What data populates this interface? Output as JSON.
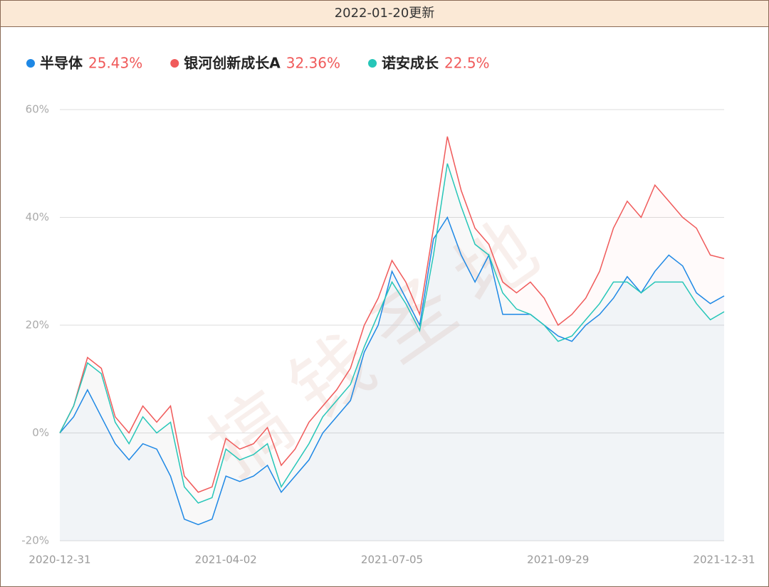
{
  "header": "2022-01-20更新",
  "watermark": "搞钱圣地",
  "chart_data": {
    "type": "line",
    "categories": [
      "2020-12-31",
      null,
      null,
      null,
      null,
      null,
      null,
      null,
      null,
      null,
      null,
      null,
      "2021-04-02",
      null,
      null,
      null,
      null,
      null,
      null,
      null,
      null,
      null,
      null,
      null,
      "2021-07-05",
      null,
      null,
      null,
      null,
      null,
      null,
      null,
      null,
      null,
      null,
      null,
      "2021-09-29",
      null,
      null,
      null,
      null,
      null,
      null,
      null,
      null,
      null,
      null,
      null,
      "2021-12-31"
    ],
    "ylim": [
      -20,
      60
    ],
    "yticks": [
      {
        "value": -20,
        "label": "-20%"
      },
      {
        "value": 0,
        "label": "0%"
      },
      {
        "value": 20,
        "label": "20%"
      },
      {
        "value": 40,
        "label": "40%"
      },
      {
        "value": 60,
        "label": "60%"
      }
    ],
    "grid": true,
    "series": [
      {
        "name": "半导体",
        "return_label": "25.43%",
        "color": "#1e88e5",
        "values": [
          0,
          3,
          8,
          3,
          -2,
          -5,
          -2,
          -3,
          -8,
          -16,
          -17,
          -16,
          -8,
          -9,
          -8,
          -6,
          -11,
          -8,
          -5,
          0,
          3,
          6,
          15,
          20,
          30,
          25,
          20,
          36,
          40,
          33,
          28,
          33,
          22,
          22,
          22,
          20,
          18,
          17,
          20,
          22,
          25,
          29,
          26,
          30,
          33,
          31,
          26,
          24,
          25.43
        ]
      },
      {
        "name": "银河创新成长A",
        "return_label": "32.36%",
        "color": "#f05a5a",
        "values": [
          0,
          5,
          14,
          12,
          3,
          0,
          5,
          2,
          5,
          -8,
          -11,
          -10,
          -1,
          -3,
          -2,
          1,
          -6,
          -3,
          2,
          5,
          8,
          12,
          20,
          25,
          32,
          28,
          22,
          38,
          55,
          45,
          38,
          35,
          28,
          26,
          28,
          25,
          20,
          22,
          25,
          30,
          38,
          43,
          40,
          46,
          43,
          40,
          38,
          33,
          32.36
        ]
      },
      {
        "name": "诺安成长",
        "return_label": "22.5%",
        "color": "#26c6b8",
        "values": [
          0,
          5,
          13,
          11,
          2,
          -2,
          3,
          0,
          2,
          -10,
          -13,
          -12,
          -3,
          -5,
          -4,
          -2,
          -10,
          -6,
          -2,
          3,
          6,
          9,
          16,
          22,
          28,
          24,
          19,
          33,
          50,
          42,
          35,
          33,
          26,
          23,
          22,
          20,
          17,
          18,
          21,
          24,
          28,
          28,
          26,
          28,
          28,
          28,
          24,
          21,
          22.5
        ]
      }
    ]
  }
}
